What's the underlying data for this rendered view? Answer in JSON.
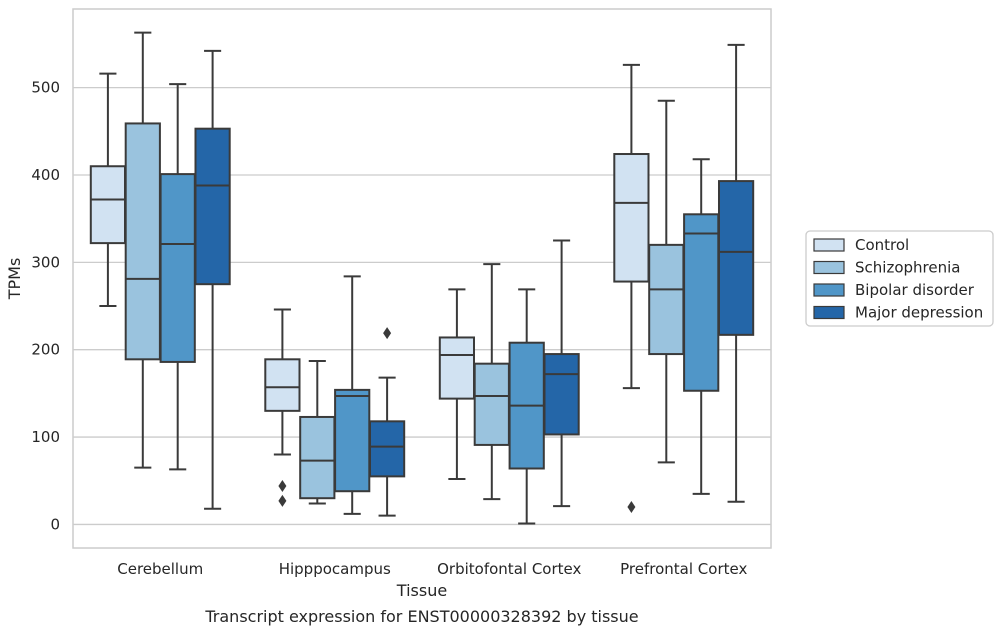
{
  "caption": "Transcript expression for ENST00000328392 by tissue",
  "chart_data": {
    "type": "box",
    "xlabel": "Tissue",
    "ylabel": "TPMs",
    "ylim": [
      -27,
      590
    ],
    "yticks": [
      0,
      100,
      200,
      300,
      400,
      500
    ],
    "grid": "horizontal",
    "legend_position": "right",
    "categories": [
      "Cerebellum",
      "Hipppocampus",
      "Orbitofontal Cortex",
      "Prefrontal Cortex"
    ],
    "series": [
      {
        "name": "Control",
        "color": "#d1e2f2",
        "boxes": [
          {
            "whisker_low": 250,
            "q1": 322,
            "median": 372,
            "q3": 410,
            "whisker_high": 516,
            "outliers": []
          },
          {
            "whisker_low": 80,
            "q1": 130,
            "median": 157,
            "q3": 189,
            "whisker_high": 246,
            "outliers": [
              44,
              27
            ]
          },
          {
            "whisker_low": 52,
            "q1": 144,
            "median": 194,
            "q3": 214,
            "whisker_high": 269,
            "outliers": []
          },
          {
            "whisker_low": 156,
            "q1": 278,
            "median": 368,
            "q3": 424,
            "whisker_high": 526,
            "outliers": [
              20
            ]
          }
        ]
      },
      {
        "name": "Schizophrenia",
        "color": "#9ac3de",
        "boxes": [
          {
            "whisker_low": 65,
            "q1": 189,
            "median": 281,
            "q3": 459,
            "whisker_high": 563,
            "outliers": []
          },
          {
            "whisker_low": 24,
            "q1": 30,
            "median": 73,
            "q3": 123,
            "whisker_high": 187,
            "outliers": []
          },
          {
            "whisker_low": 29,
            "q1": 91,
            "median": 147,
            "q3": 184,
            "whisker_high": 298,
            "outliers": []
          },
          {
            "whisker_low": 71,
            "q1": 195,
            "median": 269,
            "q3": 320,
            "whisker_high": 485,
            "outliers": []
          }
        ]
      },
      {
        "name": "Bipolar disorder",
        "color": "#5096c8",
        "boxes": [
          {
            "whisker_low": 63,
            "q1": 186,
            "median": 321,
            "q3": 401,
            "whisker_high": 504,
            "outliers": []
          },
          {
            "whisker_low": 12,
            "q1": 38,
            "median": 147,
            "q3": 154,
            "whisker_high": 284,
            "outliers": []
          },
          {
            "whisker_low": 1,
            "q1": 64,
            "median": 136,
            "q3": 208,
            "whisker_high": 269,
            "outliers": []
          },
          {
            "whisker_low": 35,
            "q1": 153,
            "median": 333,
            "q3": 355,
            "whisker_high": 418,
            "outliers": []
          }
        ]
      },
      {
        "name": "Major depression",
        "color": "#2466a8",
        "boxes": [
          {
            "whisker_low": 18,
            "q1": 275,
            "median": 388,
            "q3": 453,
            "whisker_high": 542,
            "outliers": []
          },
          {
            "whisker_low": 10,
            "q1": 55,
            "median": 89,
            "q3": 118,
            "whisker_high": 168,
            "outliers": [
              219
            ]
          },
          {
            "whisker_low": 21,
            "q1": 103,
            "median": 172,
            "q3": 195,
            "whisker_high": 325,
            "outliers": []
          },
          {
            "whisker_low": 26,
            "q1": 217,
            "median": 312,
            "q3": 393,
            "whisker_high": 549,
            "outliers": []
          }
        ]
      }
    ]
  }
}
